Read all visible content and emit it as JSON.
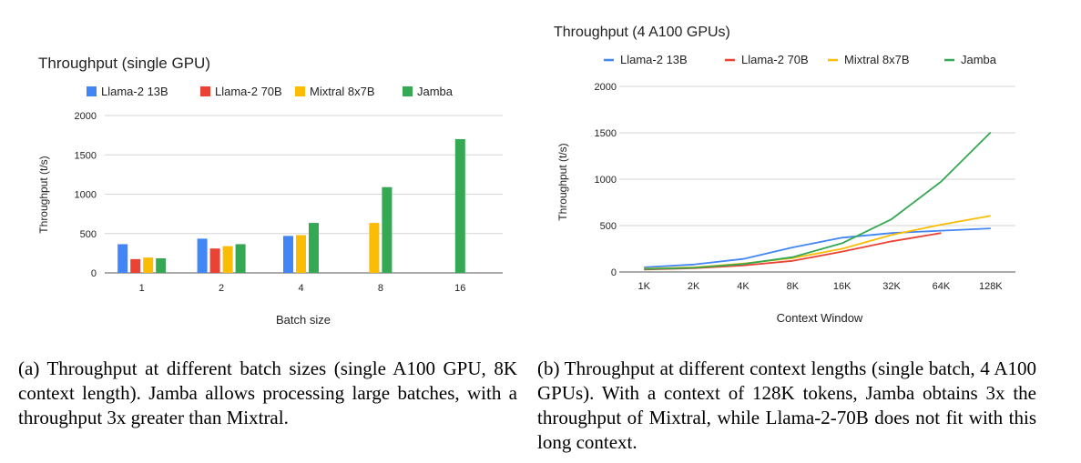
{
  "chart_data": [
    {
      "type": "bar",
      "title": "Throughput (single GPU)",
      "xlabel": "Batch size",
      "ylabel": "Throughput (t/s)",
      "categories": [
        "1",
        "2",
        "4",
        "8",
        "16"
      ],
      "yticks": [
        "0",
        "500",
        "1000",
        "1500",
        "2000"
      ],
      "ylim": [
        0,
        2000
      ],
      "grid": true,
      "legend_position": "top",
      "series": [
        {
          "name": "Llama-2 13B",
          "color": "#4285F4",
          "values": [
            365,
            435,
            470,
            null,
            null
          ]
        },
        {
          "name": "Llama-2 70B",
          "color": "#EA4335",
          "values": [
            175,
            310,
            null,
            null,
            null
          ]
        },
        {
          "name": "Mixtral 8x7B",
          "color": "#FBBC04",
          "values": [
            195,
            340,
            480,
            635,
            null
          ]
        },
        {
          "name": "Jamba",
          "color": "#34A853",
          "values": [
            185,
            365,
            635,
            1090,
            1700
          ]
        }
      ]
    },
    {
      "type": "line",
      "title": "Throughput (4 A100 GPUs)",
      "xlabel": "Context Window",
      "ylabel": "Throughput (t/s)",
      "categories": [
        "1K",
        "2K",
        "4K",
        "8K",
        "16K",
        "32K",
        "64K",
        "128K"
      ],
      "yticks": [
        "0",
        "500",
        "1000",
        "1500",
        "2000"
      ],
      "ylim": [
        0,
        2000
      ],
      "grid": true,
      "legend_position": "top",
      "series": [
        {
          "name": "Llama-2 13B",
          "color": "#4285F4",
          "values": [
            50,
            80,
            140,
            265,
            370,
            420,
            445,
            470
          ]
        },
        {
          "name": "Llama-2 70B",
          "color": "#EA4335",
          "values": [
            25,
            40,
            70,
            120,
            220,
            330,
            420,
            null
          ]
        },
        {
          "name": "Mixtral 8x7B",
          "color": "#FBBC04",
          "values": [
            35,
            50,
            90,
            150,
            250,
            400,
            510,
            605
          ]
        },
        {
          "name": "Jamba",
          "color": "#34A853",
          "values": [
            30,
            45,
            85,
            160,
            310,
            570,
            975,
            1505
          ]
        }
      ]
    }
  ],
  "captions": {
    "a": "(a) Throughput at different batch sizes (single A100 GPU, 8K context length). Jamba allows processing large batches, with a throughput 3x greater than Mix­tral.",
    "b": "(b) Throughput at different context lengths (single batch, 4 A100 GPUs). With a context of 128K to­kens, Jamba obtains 3x the throughput of Mixtral, while Llama-2-70B does not fit with this long context."
  }
}
